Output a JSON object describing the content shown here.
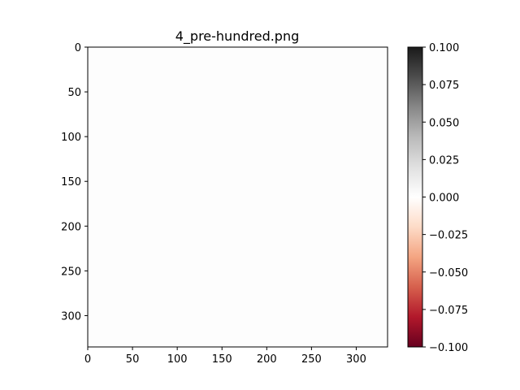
{
  "figure": {
    "background": "#ffffff"
  },
  "chart_data": {
    "type": "heatmap",
    "title": "4_pre-hundred.png",
    "xlabel": "",
    "ylabel": "",
    "xlim": [
      0,
      335
    ],
    "ylim": [
      335,
      0
    ],
    "x_ticks": [
      0,
      50,
      100,
      150,
      200,
      250,
      300
    ],
    "y_ticks": [
      0,
      50,
      100,
      150,
      200,
      250,
      300
    ],
    "x_tick_labels": [
      "0",
      "50",
      "100",
      "150",
      "200",
      "250",
      "300"
    ],
    "y_tick_labels": [
      "0",
      "50",
      "100",
      "150",
      "200",
      "250",
      "300"
    ],
    "image": {
      "rows": 335,
      "cols": 335,
      "value": 0.0,
      "fill": "#fdfdfd"
    },
    "colorbar": {
      "colormap": "RdGy",
      "vmin": -0.1,
      "vmax": 0.1,
      "ticks": [
        0.1,
        0.075,
        0.05,
        0.025,
        0.0,
        -0.025,
        -0.05,
        -0.075,
        -0.1
      ],
      "tick_labels": [
        "0.100",
        "0.075",
        "0.050",
        "0.025",
        "0.000",
        "−0.025",
        "−0.050",
        "−0.075",
        "−0.100"
      ],
      "gradient_colors": [
        "#67001f",
        "#b2182b",
        "#d6604d",
        "#f4a582",
        "#fddbc7",
        "#ffffff",
        "#e0e0e0",
        "#bababa",
        "#878787",
        "#4d4d4d",
        "#1a1a1a"
      ]
    },
    "grid": false
  }
}
